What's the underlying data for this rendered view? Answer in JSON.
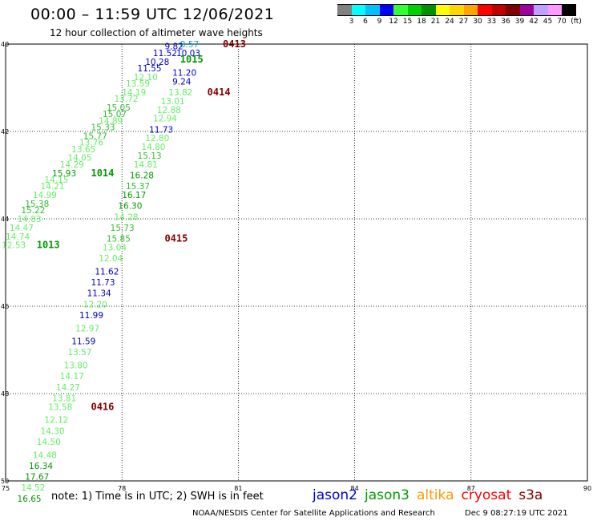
{
  "header": {
    "title": "00:00 – 11:59 UTC 12/06/2021",
    "subtitle": "12 hour collection of altimeter wave heights"
  },
  "color_scale": {
    "unit_label": "(ft)",
    "colors": [
      "#808080",
      "#00ffff",
      "#00c0ff",
      "#0000ff",
      "#33ff33",
      "#00d000",
      "#009000",
      "#ffff00",
      "#ffd700",
      "#ffa500",
      "#ff0000",
      "#c00000",
      "#800000",
      "#a000a0",
      "#c0a0ff",
      "#ff99ff",
      "#000000"
    ],
    "labels": [
      "3",
      "6",
      "9",
      "12",
      "15",
      "18",
      "21",
      "24",
      "27",
      "30",
      "33",
      "36",
      "39",
      "42",
      "45",
      "70"
    ]
  },
  "map": {
    "lon_ticks": [
      "75",
      "78",
      "81",
      "84",
      "87",
      "90"
    ],
    "lat_ticks": [
      "40",
      "42",
      "44",
      "46",
      "48",
      "50"
    ],
    "lon_range": [
      75,
      90
    ],
    "lat_range": [
      40,
      50
    ],
    "grid": "dotted"
  },
  "observations": [
    {
      "t": "8.57",
      "lon": 79.5,
      "lat": 40.0,
      "c": "#00a8d8"
    },
    {
      "t": "9.82",
      "lon": 79.1,
      "lat": 40.05,
      "c": "#0000cc"
    },
    {
      "t": "11.52",
      "lon": 78.8,
      "lat": 40.2,
      "c": "#0000cc"
    },
    {
      "t": "10.03",
      "lon": 79.4,
      "lat": 40.2,
      "c": "#0000cc"
    },
    {
      "t": "10.28",
      "lon": 78.6,
      "lat": 40.4,
      "c": "#0000cc"
    },
    {
      "t": "11.55",
      "lon": 78.4,
      "lat": 40.55,
      "c": "#0000cc"
    },
    {
      "t": "11.20",
      "lon": 79.3,
      "lat": 40.65,
      "c": "#0000cc"
    },
    {
      "t": "12.10",
      "lon": 78.3,
      "lat": 40.75,
      "c": "#66ee66"
    },
    {
      "t": "13.59",
      "lon": 78.1,
      "lat": 40.9,
      "c": "#66ee66"
    },
    {
      "t": "9.24",
      "lon": 79.3,
      "lat": 40.85,
      "c": "#0000cc"
    },
    {
      "t": "14.19",
      "lon": 78.0,
      "lat": 41.1,
      "c": "#66ee66"
    },
    {
      "t": "13.82",
      "lon": 79.2,
      "lat": 41.1,
      "c": "#66ee66"
    },
    {
      "t": "13.72",
      "lon": 77.8,
      "lat": 41.25,
      "c": "#66ee66"
    },
    {
      "t": "13.01",
      "lon": 79.0,
      "lat": 41.3,
      "c": "#66ee66"
    },
    {
      "t": "15.05",
      "lon": 77.6,
      "lat": 41.45,
      "c": "#33bb33"
    },
    {
      "t": "12.88",
      "lon": 78.9,
      "lat": 41.5,
      "c": "#66ee66"
    },
    {
      "t": "15.07",
      "lon": 77.5,
      "lat": 41.6,
      "c": "#33bb33"
    },
    {
      "t": "12.94",
      "lon": 78.8,
      "lat": 41.7,
      "c": "#66ee66"
    },
    {
      "t": "14.89",
      "lon": 77.4,
      "lat": 41.75,
      "c": "#66ee66"
    },
    {
      "t": "15.33",
      "lon": 77.2,
      "lat": 41.9,
      "c": "#33bb33"
    },
    {
      "t": "11.73",
      "lon": 78.7,
      "lat": 41.95,
      "c": "#0000cc"
    },
    {
      "t": "15.77",
      "lon": 77.0,
      "lat": 42.1,
      "c": "#33bb33"
    },
    {
      "t": "12.80",
      "lon": 78.6,
      "lat": 42.15,
      "c": "#66ee66"
    },
    {
      "t": "13.76",
      "lon": 76.9,
      "lat": 42.25,
      "c": "#66ee66"
    },
    {
      "t": "14.80",
      "lon": 78.5,
      "lat": 42.35,
      "c": "#66ee66"
    },
    {
      "t": "13.65",
      "lon": 76.7,
      "lat": 42.4,
      "c": "#66ee66"
    },
    {
      "t": "15.13",
      "lon": 78.4,
      "lat": 42.55,
      "c": "#33bb33"
    },
    {
      "t": "14.05",
      "lon": 76.6,
      "lat": 42.6,
      "c": "#66ee66"
    },
    {
      "t": "14.81",
      "lon": 78.3,
      "lat": 42.75,
      "c": "#66ee66"
    },
    {
      "t": "14.29",
      "lon": 76.4,
      "lat": 42.75,
      "c": "#66ee66"
    },
    {
      "t": "15.93",
      "lon": 76.2,
      "lat": 42.95,
      "c": "#009900"
    },
    {
      "t": "16.28",
      "lon": 78.2,
      "lat": 43.0,
      "c": "#009900"
    },
    {
      "t": "14.15",
      "lon": 76.0,
      "lat": 43.1,
      "c": "#66ee66"
    },
    {
      "t": "15.37",
      "lon": 78.1,
      "lat": 43.25,
      "c": "#33bb33"
    },
    {
      "t": "14.21",
      "lon": 75.9,
      "lat": 43.25,
      "c": "#66ee66"
    },
    {
      "t": "16.17",
      "lon": 78.0,
      "lat": 43.45,
      "c": "#009900"
    },
    {
      "t": "14.99",
      "lon": 75.7,
      "lat": 43.45,
      "c": "#66ee66"
    },
    {
      "t": "16.30",
      "lon": 77.9,
      "lat": 43.7,
      "c": "#009900"
    },
    {
      "t": "15.38",
      "lon": 75.5,
      "lat": 43.65,
      "c": "#33bb33"
    },
    {
      "t": "15.22",
      "lon": 75.4,
      "lat": 43.8,
      "c": "#33bb33"
    },
    {
      "t": "14.28",
      "lon": 77.8,
      "lat": 43.95,
      "c": "#66ee66"
    },
    {
      "t": "14.83",
      "lon": 75.3,
      "lat": 44.0,
      "c": "#66ee66"
    },
    {
      "t": "15.73",
      "lon": 77.7,
      "lat": 44.2,
      "c": "#33bb33"
    },
    {
      "t": "14.47",
      "lon": 75.1,
      "lat": 44.2,
      "c": "#66ee66"
    },
    {
      "t": "15.85",
      "lon": 77.6,
      "lat": 44.45,
      "c": "#33bb33"
    },
    {
      "t": "14.74",
      "lon": 75.0,
      "lat": 44.4,
      "c": "#66ee66"
    },
    {
      "t": "12.53",
      "lon": 74.9,
      "lat": 44.6,
      "c": "#66ee66"
    },
    {
      "t": "13.04",
      "lon": 77.5,
      "lat": 44.65,
      "c": "#66ee66"
    },
    {
      "t": "12.04",
      "lon": 77.4,
      "lat": 44.9,
      "c": "#66ee66"
    },
    {
      "t": "11.62",
      "lon": 77.3,
      "lat": 45.2,
      "c": "#0000cc"
    },
    {
      "t": "11.73",
      "lon": 77.2,
      "lat": 45.45,
      "c": "#0000cc"
    },
    {
      "t": "11.34",
      "lon": 77.1,
      "lat": 45.7,
      "c": "#0000cc"
    },
    {
      "t": "12.20",
      "lon": 77.0,
      "lat": 45.95,
      "c": "#66ee66"
    },
    {
      "t": "11.99",
      "lon": 76.9,
      "lat": 46.2,
      "c": "#0000cc"
    },
    {
      "t": "12.97",
      "lon": 76.8,
      "lat": 46.5,
      "c": "#66ee66"
    },
    {
      "t": "11.59",
      "lon": 76.7,
      "lat": 46.8,
      "c": "#0000cc"
    },
    {
      "t": "13.57",
      "lon": 76.6,
      "lat": 47.05,
      "c": "#66ee66"
    },
    {
      "t": "13.80",
      "lon": 76.5,
      "lat": 47.35,
      "c": "#66ee66"
    },
    {
      "t": "14.17",
      "lon": 76.4,
      "lat": 47.6,
      "c": "#66ee66"
    },
    {
      "t": "14.27",
      "lon": 76.3,
      "lat": 47.85,
      "c": "#66ee66"
    },
    {
      "t": "13.81",
      "lon": 76.2,
      "lat": 48.1,
      "c": "#66ee66"
    },
    {
      "t": "13.58",
      "lon": 76.1,
      "lat": 48.3,
      "c": "#66ee66"
    },
    {
      "t": "12.12",
      "lon": 76.0,
      "lat": 48.6,
      "c": "#66ee66"
    },
    {
      "t": "14.30",
      "lon": 75.9,
      "lat": 48.85,
      "c": "#66ee66"
    },
    {
      "t": "14.50",
      "lon": 75.8,
      "lat": 49.1,
      "c": "#66ee66"
    },
    {
      "t": "14.48",
      "lon": 75.7,
      "lat": 49.4,
      "c": "#66ee66"
    },
    {
      "t": "16.34",
      "lon": 75.6,
      "lat": 49.65,
      "c": "#009900"
    },
    {
      "t": "17.67",
      "lon": 75.5,
      "lat": 49.9,
      "c": "#009900"
    },
    {
      "t": "14.52",
      "lon": 75.4,
      "lat": 50.15,
      "c": "#66ee66"
    },
    {
      "t": "16.65",
      "lon": 75.3,
      "lat": 50.4,
      "c": "#009900"
    }
  ],
  "time_labels": [
    {
      "t": "0413",
      "lon": 80.6,
      "lat": 40.0,
      "c": "#800000"
    },
    {
      "t": "1015",
      "lon": 79.5,
      "lat": 40.35,
      "c": "#009900"
    },
    {
      "t": "0414",
      "lon": 80.2,
      "lat": 41.1,
      "c": "#800000"
    },
    {
      "t": "1014",
      "lon": 77.2,
      "lat": 42.95,
      "c": "#009900"
    },
    {
      "t": "0415",
      "lon": 79.1,
      "lat": 44.45,
      "c": "#800000"
    },
    {
      "t": "1013",
      "lon": 75.8,
      "lat": 44.6,
      "c": "#009900"
    },
    {
      "t": "0416",
      "lon": 77.2,
      "lat": 48.3,
      "c": "#800000"
    }
  ],
  "footer": {
    "note": "note: 1) Time is in UTC; 2) SWH is in feet",
    "satellites": [
      {
        "name": "jason2",
        "color": "#0000cc"
      },
      {
        "name": "jason3",
        "color": "#009900"
      },
      {
        "name": "altika",
        "color": "#ff9900"
      },
      {
        "name": "cryosat",
        "color": "#ff0000"
      },
      {
        "name": "s3a",
        "color": "#800000"
      }
    ],
    "credit": "NOAA/NESDIS Center for Satellite Applications and Research",
    "timestamp": "Dec  9 08:27:19 UTC 2021"
  }
}
